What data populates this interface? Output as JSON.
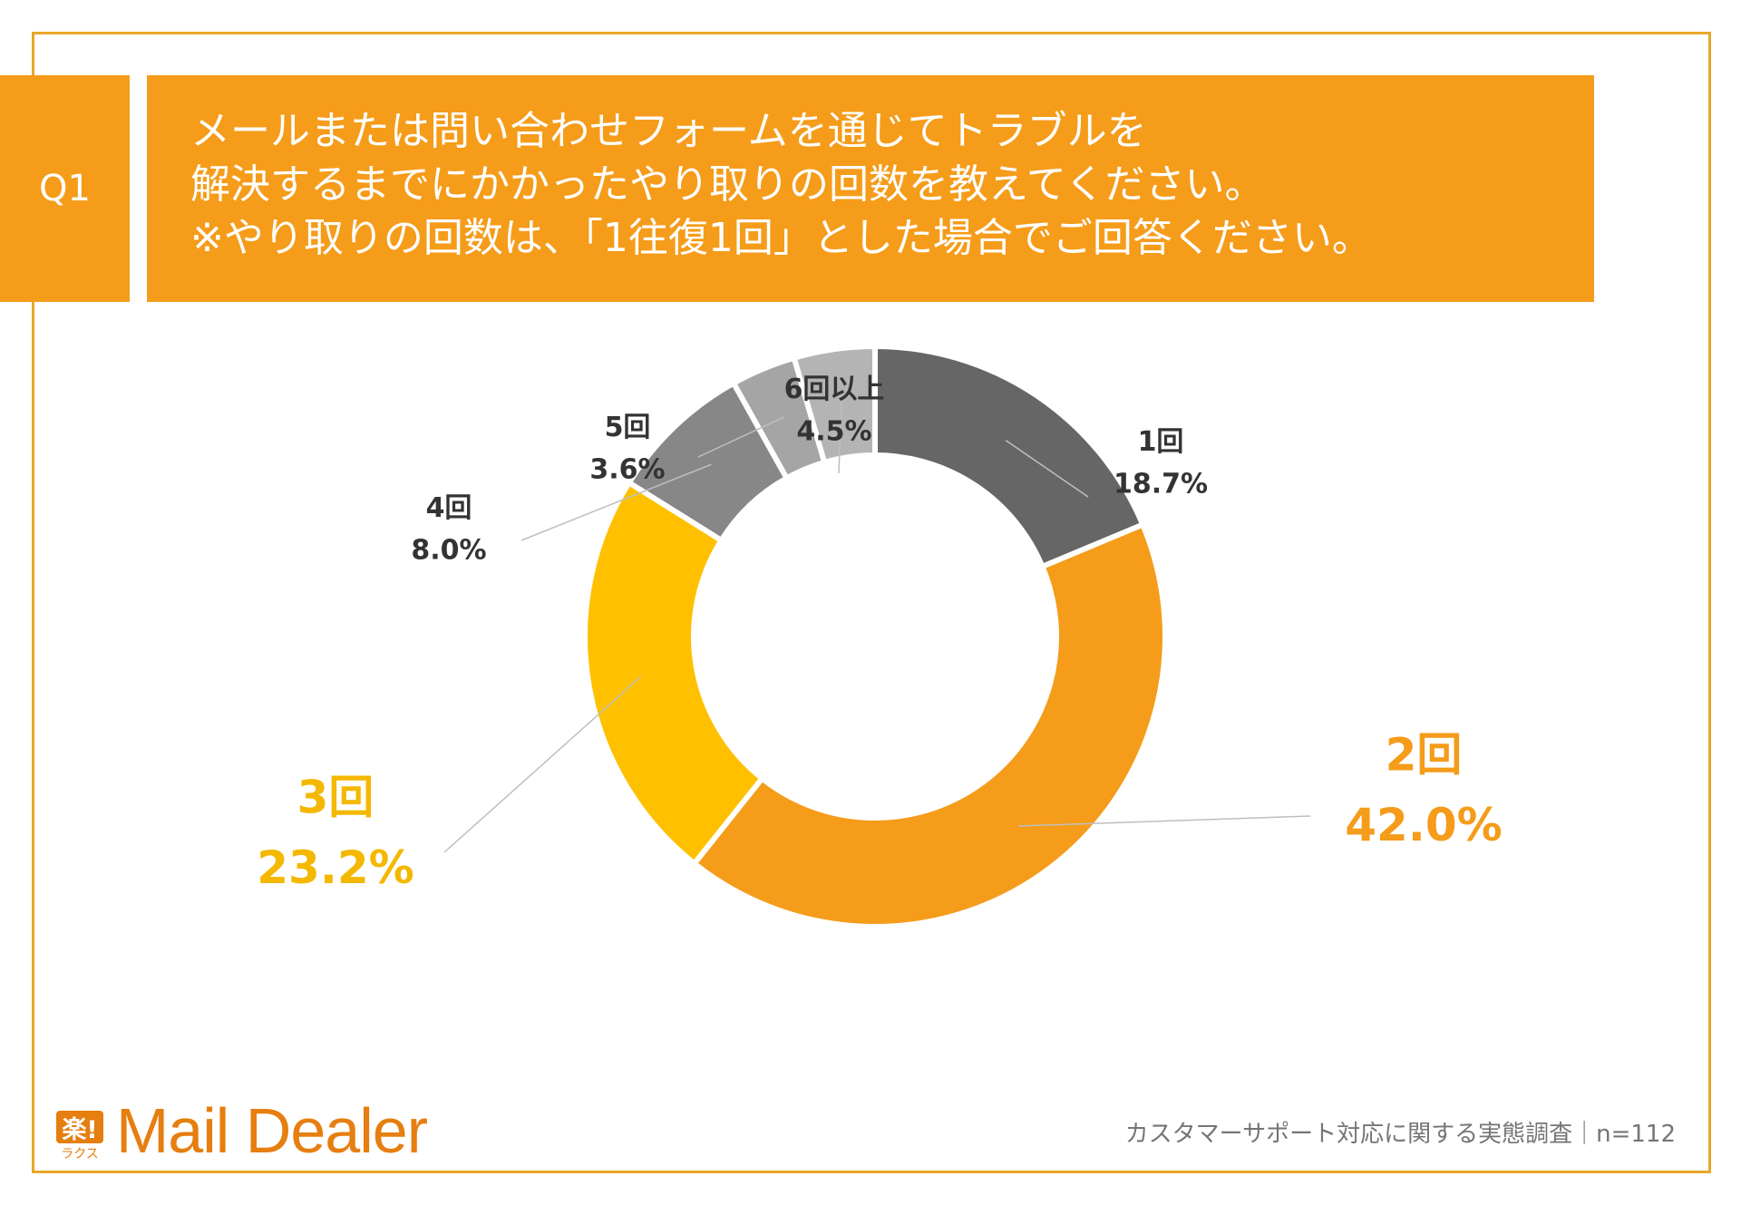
{
  "question": {
    "badge": "Q1",
    "lines": [
      "メールまたは問い合わせフォームを通じてトラブルを",
      "解決するまでにかかったやり取りの回数を教えてください。",
      "※やり取りの回数は、「1往復1回」とした場合でご回答ください。"
    ]
  },
  "colors": {
    "accent": "#F59C1A",
    "frame": "#E8A72A",
    "brand": "#E67E10",
    "text_dark": "#333333",
    "text_muted": "#757575"
  },
  "chart_data": {
    "type": "pie",
    "variant": "donut",
    "categories": [
      "1回",
      "2回",
      "3回",
      "4回",
      "5回",
      "6回以上"
    ],
    "values": [
      18.7,
      42.0,
      23.2,
      8.0,
      3.6,
      4.5
    ],
    "value_labels": [
      "18.7%",
      "42.0%",
      "23.2%",
      "8.0%",
      "3.6%",
      "4.5%"
    ],
    "colors": [
      "#666666",
      "#F59C1A",
      "#FFC000",
      "#878787",
      "#A5A5A5",
      "#B4B4B4"
    ],
    "label_colors": [
      "#333333",
      "#F59C1A",
      "#F4B800",
      "#333333",
      "#333333",
      "#333333"
    ],
    "start_angle_deg": 0,
    "direction": "clockwise"
  },
  "footer": {
    "note": "カスタマーサポート対応に関する実態調査｜n=112",
    "logo_mark": "楽!",
    "logo_sub": "ラクス",
    "logo_text": "Mail Dealer"
  }
}
